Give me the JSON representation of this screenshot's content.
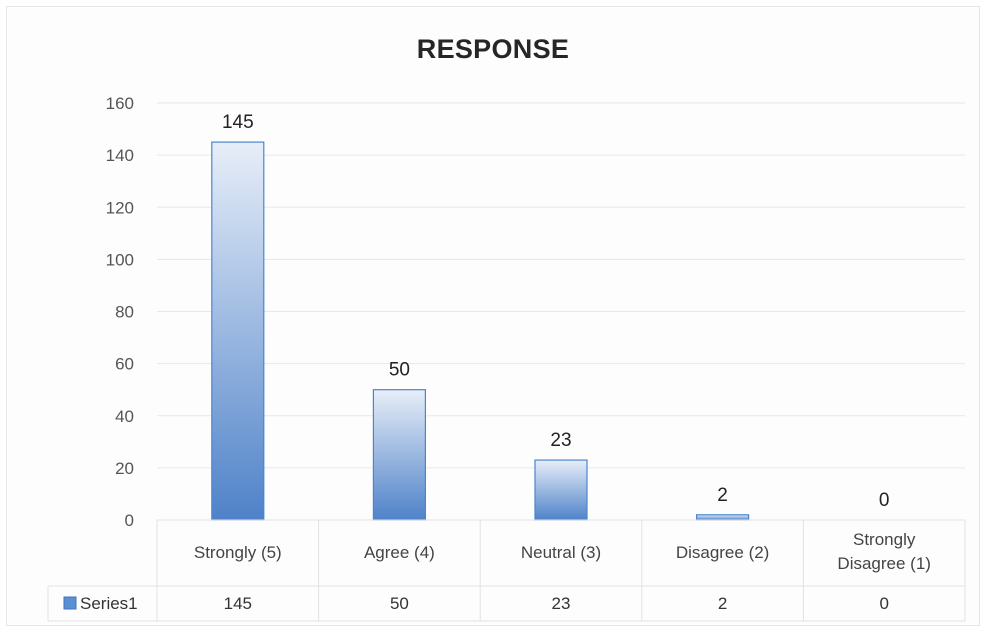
{
  "chart_data": {
    "type": "bar",
    "title": "RESPONSE",
    "categories": [
      "Strongly (5)",
      "Agree (4)",
      "Neutral (3)",
      "Disagree (2)",
      "Strongly Disagree (1)"
    ],
    "category_lines": [
      [
        "Strongly (5)"
      ],
      [
        "Agree (4)"
      ],
      [
        "Neutral (3)"
      ],
      [
        "Disagree (2)"
      ],
      [
        "Strongly",
        "Disagree (1)"
      ]
    ],
    "series": [
      {
        "name": "Series1",
        "values": [
          145,
          50,
          23,
          2,
          0
        ]
      }
    ],
    "ylim": [
      0,
      160
    ],
    "yticks": [
      0,
      20,
      40,
      60,
      80,
      100,
      120,
      140,
      160
    ],
    "xlabel": "",
    "ylabel": "",
    "grid": true,
    "data_labels": true,
    "data_table": true,
    "legend": "data-table-left",
    "colors": {
      "bar_top": "#e7eef8",
      "bar_bottom": "#4f82c9",
      "bar_stroke": "#4a86d0",
      "grid": "#e8e8e8",
      "legend_key": "#5b8fd4"
    }
  }
}
